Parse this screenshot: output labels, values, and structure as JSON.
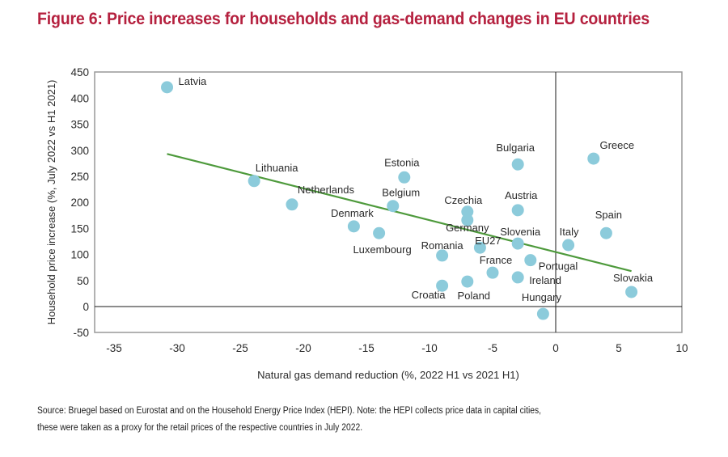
{
  "title": "Figure 6: Price increases for households and gas-demand changes in EU countries",
  "source_note": {
    "line1": "Source: Bruegel based on Eurostat and on the Household Energy Price Index (HEPI). Note: the HEPI collects price data in capital cities,",
    "line2": "these were taken as a proxy for the retail prices of the respective countries in July 2022."
  },
  "colors": {
    "title": "#b5213f",
    "point": "#8ccbdb",
    "trendline": "#4e9a3c",
    "frame": "#999999",
    "zero_lines": "#1a1a1a"
  },
  "chart_data": {
    "type": "scatter",
    "title": "Figure 6: Price increases for households and gas-demand changes in EU countries",
    "xlabel": "Natural gas demand reduction (%, 2022 H1 vs 2021 H1)",
    "ylabel": "Household price increase (%, July 2022 vs H1 2021)",
    "xlim": [
      -37,
      10
    ],
    "ylim": [
      -50,
      450
    ],
    "xticks": [
      -35,
      -30,
      -25,
      -20,
      -15,
      -10,
      -5,
      0,
      5,
      10
    ],
    "yticks": [
      -50,
      0,
      50,
      100,
      150,
      200,
      250,
      300,
      350,
      400,
      450
    ],
    "grid": false,
    "legend": "none",
    "points": [
      {
        "name": "Latvia",
        "x": -30.8,
        "y": 421
      },
      {
        "name": "Lithuania",
        "x": -23.9,
        "y": 241
      },
      {
        "name": "Netherlands",
        "x": -20.9,
        "y": 196
      },
      {
        "name": "Denmark",
        "x": -16.0,
        "y": 154
      },
      {
        "name": "Luxembourg",
        "x": -14.0,
        "y": 141
      },
      {
        "name": "Belgium",
        "x": -12.9,
        "y": 193
      },
      {
        "name": "Estonia",
        "x": -12.0,
        "y": 248
      },
      {
        "name": "Romania",
        "x": -9.0,
        "y": 98
      },
      {
        "name": "Croatia",
        "x": -9.0,
        "y": 40
      },
      {
        "name": "Czechia",
        "x": -7.0,
        "y": 182
      },
      {
        "name": "Germany",
        "x": -7.0,
        "y": 166
      },
      {
        "name": "Poland",
        "x": -7.0,
        "y": 48
      },
      {
        "name": "EU27",
        "x": -6.0,
        "y": 113
      },
      {
        "name": "France",
        "x": -5.0,
        "y": 65
      },
      {
        "name": "Bulgaria",
        "x": -3.0,
        "y": 273
      },
      {
        "name": "Austria",
        "x": -3.0,
        "y": 185
      },
      {
        "name": "Slovenia",
        "x": -3.0,
        "y": 121
      },
      {
        "name": "Ireland",
        "x": -3.0,
        "y": 56
      },
      {
        "name": "Portugal",
        "x": -2.0,
        "y": 89
      },
      {
        "name": "Hungary",
        "x": -1.0,
        "y": -14
      },
      {
        "name": "Italy",
        "x": 1.0,
        "y": 118
      },
      {
        "name": "Greece",
        "x": 3.0,
        "y": 284
      },
      {
        "name": "Spain",
        "x": 4.0,
        "y": 141
      },
      {
        "name": "Slovakia",
        "x": 6.0,
        "y": 28
      }
    ],
    "trendline": {
      "x": [
        -30.8,
        6.0
      ],
      "y": [
        293,
        68
      ]
    }
  }
}
